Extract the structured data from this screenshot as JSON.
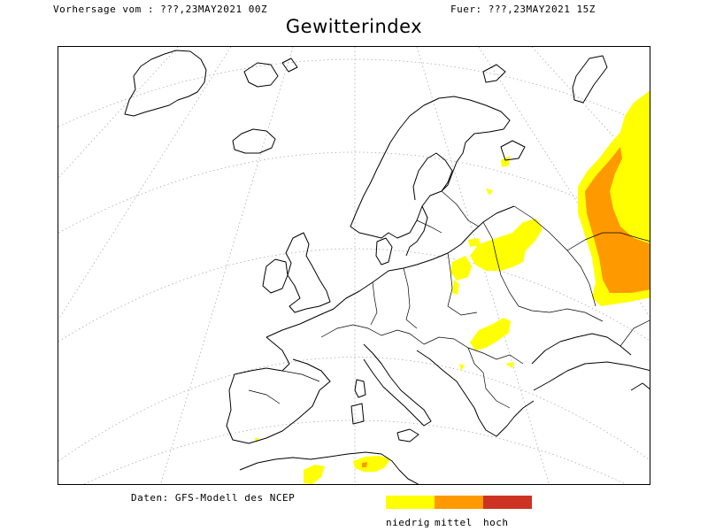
{
  "header": {
    "forecast_from": "Vorhersage vom : ???,23MAY2021 00Z",
    "valid_for": "Fuer: ???,23MAY2021 15Z"
  },
  "title": "Gewitterindex",
  "footer": {
    "data_source": "Daten: GFS-Modell des NCEP"
  },
  "legend": {
    "items": [
      {
        "label": "niedrig",
        "color": "#ffff00"
      },
      {
        "label": "mittel",
        "color": "#ff9900"
      },
      {
        "label": "hoch",
        "color": "#cc3322"
      }
    ]
  }
}
